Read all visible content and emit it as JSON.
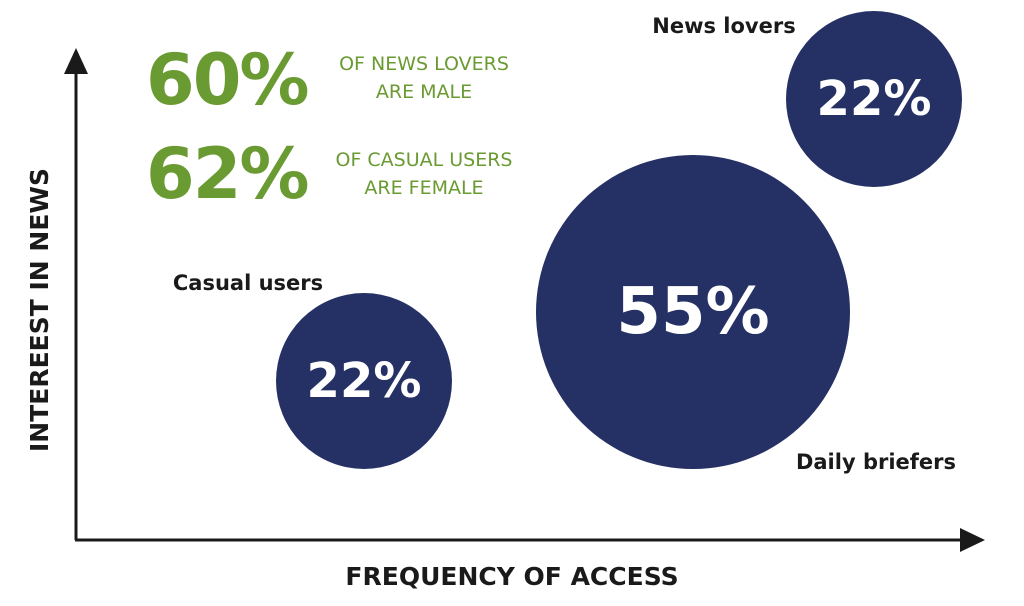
{
  "chart_data": {
    "type": "scatter",
    "xlabel": "FREQUENCY OF ACCESS",
    "ylabel": "INTEREEST IN NEWS",
    "series": [
      {
        "name": "Casual users",
        "value": "22%",
        "share": 22
      },
      {
        "name": "Daily briefers",
        "value": "55%",
        "share": 55
      },
      {
        "name": "News lovers",
        "value": "22%",
        "share": 22
      }
    ],
    "annotations": [
      {
        "value": "60%",
        "line1": "OF NEWS LOVERS",
        "line2": "ARE MALE"
      },
      {
        "value": "62%",
        "line1": "OF CASUAL USERS",
        "line2": "ARE FEMALE"
      }
    ]
  },
  "colors": {
    "bubble": "#253165",
    "stat": "#6a9a32",
    "axis": "#1a1a1a"
  }
}
